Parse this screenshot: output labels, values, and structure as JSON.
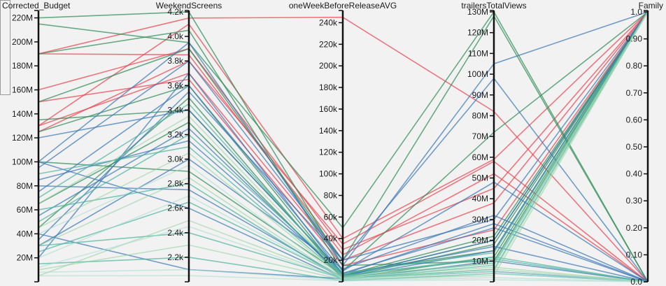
{
  "chart_data": {
    "type": "parallel-coordinates",
    "title": "",
    "grid": false,
    "legend": "none",
    "dimensions": [
      {
        "name": "Corrected_Budget",
        "min": 0,
        "max": 225000000,
        "ticks": [
          20000000,
          40000000,
          60000000,
          80000000,
          100000000,
          120000000,
          140000000,
          160000000,
          180000000,
          200000000,
          220000000
        ],
        "tick_labels": [
          "20M",
          "40M",
          "60M",
          "80M",
          "100M",
          "120M",
          "140M",
          "160M",
          "180M",
          "200M",
          "220M"
        ]
      },
      {
        "name": "WeekendScreens",
        "min": 2000,
        "max": 4200,
        "ticks": [
          2200,
          2400,
          2600,
          2800,
          3000,
          3200,
          3400,
          3600,
          3800,
          4000,
          4200
        ],
        "tick_labels": [
          "2.2k",
          "2.4k",
          "2.6k",
          "2.8k",
          "3.0k",
          "3.2k",
          "3.4k",
          "3.6k",
          "3.8k",
          "4.0k",
          "4.2k"
        ]
      },
      {
        "name": "oneWeekBeforeReleaseAVG",
        "min": 0,
        "max": 250000,
        "ticks": [
          20000,
          40000,
          60000,
          80000,
          100000,
          120000,
          140000,
          160000,
          180000,
          200000,
          220000,
          240000
        ],
        "tick_labels": [
          "20k",
          "40k",
          "60k",
          "80k",
          "100k",
          "120k",
          "140k",
          "160k",
          "180k",
          "200k",
          "220k",
          "240k"
        ]
      },
      {
        "name": "trailersTotalViews",
        "min": 0,
        "max": 130000000,
        "ticks": [
          10000000,
          20000000,
          30000000,
          40000000,
          50000000,
          60000000,
          70000000,
          80000000,
          90000000,
          100000000,
          110000000,
          120000000,
          130000000
        ],
        "tick_labels": [
          "10M",
          "20M",
          "30M",
          "40M",
          "50M",
          "60M",
          "70M",
          "80M",
          "90M",
          "100M",
          "110M",
          "120M",
          "130M"
        ]
      },
      {
        "name": "Family",
        "min": 0,
        "max": 1,
        "ticks": [
          0,
          0.1,
          0.2,
          0.3,
          0.4,
          0.5,
          0.6,
          0.7,
          0.8,
          0.9,
          1.0
        ],
        "tick_labels": [
          "0.0",
          "0.10",
          "0.20",
          "0.30",
          "0.40",
          "0.50",
          "0.60",
          "0.70",
          "0.80",
          "0.90",
          "1.0"
        ]
      }
    ],
    "colors": {
      "red": "#e8414f",
      "green": "#2e8b57",
      "blue": "#3a78b5",
      "teal": "#4db3a0",
      "lightgreen": "#8fd19e",
      "paleteal": "#a8dccf"
    },
    "records": [
      {
        "c": "red",
        "v": [
          190000000,
          4150,
          245000,
          82000000,
          0
        ]
      },
      {
        "c": "red",
        "v": [
          130000000,
          4100,
          40000,
          59000000,
          1
        ]
      },
      {
        "c": "red",
        "v": [
          160000000,
          3900,
          30000,
          45000000,
          1
        ]
      },
      {
        "c": "red",
        "v": [
          190000000,
          3850,
          25000,
          52000000,
          0
        ]
      },
      {
        "c": "red",
        "v": [
          130000000,
          3700,
          20000,
          38000000,
          1
        ]
      },
      {
        "c": "red",
        "v": [
          125000000,
          3800,
          35000,
          58000000,
          0
        ]
      },
      {
        "c": "red",
        "v": [
          150000000,
          3650,
          15000,
          25000000,
          1
        ]
      },
      {
        "c": "green",
        "v": [
          215000000,
          3950,
          50000,
          130000000,
          0
        ]
      },
      {
        "c": "green",
        "v": [
          220000000,
          4200,
          15000,
          10000000,
          1
        ]
      },
      {
        "c": "green",
        "v": [
          190000000,
          4050,
          10000,
          72000000,
          1
        ]
      },
      {
        "c": "green",
        "v": [
          150000000,
          3900,
          20000,
          128000000,
          0
        ]
      },
      {
        "c": "green",
        "v": [
          125000000,
          3600,
          5000,
          20000000,
          1
        ]
      },
      {
        "c": "green",
        "v": [
          135000000,
          3400,
          8000,
          15000000,
          1
        ]
      },
      {
        "c": "green",
        "v": [
          65000000,
          3300,
          3000,
          12000000,
          1
        ]
      },
      {
        "c": "green",
        "v": [
          100000000,
          2900,
          6000,
          22000000,
          1
        ]
      },
      {
        "c": "green",
        "v": [
          45000000,
          3500,
          4000,
          18000000,
          1
        ]
      },
      {
        "c": "blue",
        "v": [
          100000000,
          3950,
          15000,
          105000000,
          1
        ]
      },
      {
        "c": "blue",
        "v": [
          95000000,
          3800,
          20000,
          98000000,
          0
        ]
      },
      {
        "c": "blue",
        "v": [
          75000000,
          3600,
          10000,
          48000000,
          0
        ]
      },
      {
        "c": "blue",
        "v": [
          35000000,
          3550,
          20000,
          30000000,
          1
        ]
      },
      {
        "c": "blue",
        "v": [
          120000000,
          3400,
          8000,
          26000000,
          0
        ]
      },
      {
        "c": "blue",
        "v": [
          55000000,
          3250,
          5000,
          20000000,
          1
        ]
      },
      {
        "c": "blue",
        "v": [
          30000000,
          3000,
          12000,
          32000000,
          0
        ]
      },
      {
        "c": "blue",
        "v": [
          80000000,
          2750,
          4000,
          15000000,
          1
        ]
      },
      {
        "c": "blue",
        "v": [
          100000000,
          2600,
          2000,
          10000000,
          0
        ]
      },
      {
        "c": "blue",
        "v": [
          85000000,
          3150,
          7000,
          28000000,
          0
        ]
      },
      {
        "c": "blue",
        "v": [
          40000000,
          2100,
          3000,
          5000000,
          0
        ]
      },
      {
        "c": "blue",
        "v": [
          20000000,
          3700,
          6000,
          17000000,
          0
        ]
      },
      {
        "c": "teal",
        "v": [
          30000000,
          2400,
          3000,
          6000000,
          1
        ]
      },
      {
        "c": "teal",
        "v": [
          60000000,
          2800,
          2000,
          8000000,
          1
        ]
      },
      {
        "c": "teal",
        "v": [
          90000000,
          3100,
          5000,
          12000000,
          0
        ]
      },
      {
        "c": "teal",
        "v": [
          25000000,
          2650,
          4000,
          9000000,
          1
        ]
      },
      {
        "c": "teal",
        "v": [
          15000000,
          2200,
          1000,
          4000000,
          0
        ]
      },
      {
        "c": "teal",
        "v": [
          50000000,
          3200,
          8000,
          14000000,
          1
        ]
      },
      {
        "c": "teal",
        "v": [
          70000000,
          3450,
          6000,
          11000000,
          0
        ]
      },
      {
        "c": "lightgreen",
        "v": [
          10000000,
          2300,
          2000,
          3000000,
          1
        ]
      },
      {
        "c": "lightgreen",
        "v": [
          5000000,
          2500,
          3000,
          5000000,
          1
        ]
      },
      {
        "c": "lightgreen",
        "v": [
          45000000,
          3050,
          4000,
          7000000,
          0
        ]
      },
      {
        "c": "lightgreen",
        "v": [
          65000000,
          3350,
          5000,
          9000000,
          1
        ]
      },
      {
        "c": "lightgreen",
        "v": [
          30000000,
          2850,
          2500,
          6000000,
          0
        ]
      },
      {
        "c": "paleteal",
        "v": [
          8000000,
          2100,
          1500,
          2000000,
          0
        ]
      },
      {
        "c": "paleteal",
        "v": [
          12000000,
          2450,
          2500,
          4000000,
          0
        ]
      },
      {
        "c": "paleteal",
        "v": [
          20000000,
          2700,
          3500,
          8000000,
          1
        ]
      },
      {
        "c": "paleteal",
        "v": [
          5000000,
          2050,
          1000,
          1000000,
          0
        ]
      },
      {
        "c": "paleteal",
        "v": [
          40000000,
          2950,
          3000,
          5000000,
          0
        ]
      }
    ]
  }
}
